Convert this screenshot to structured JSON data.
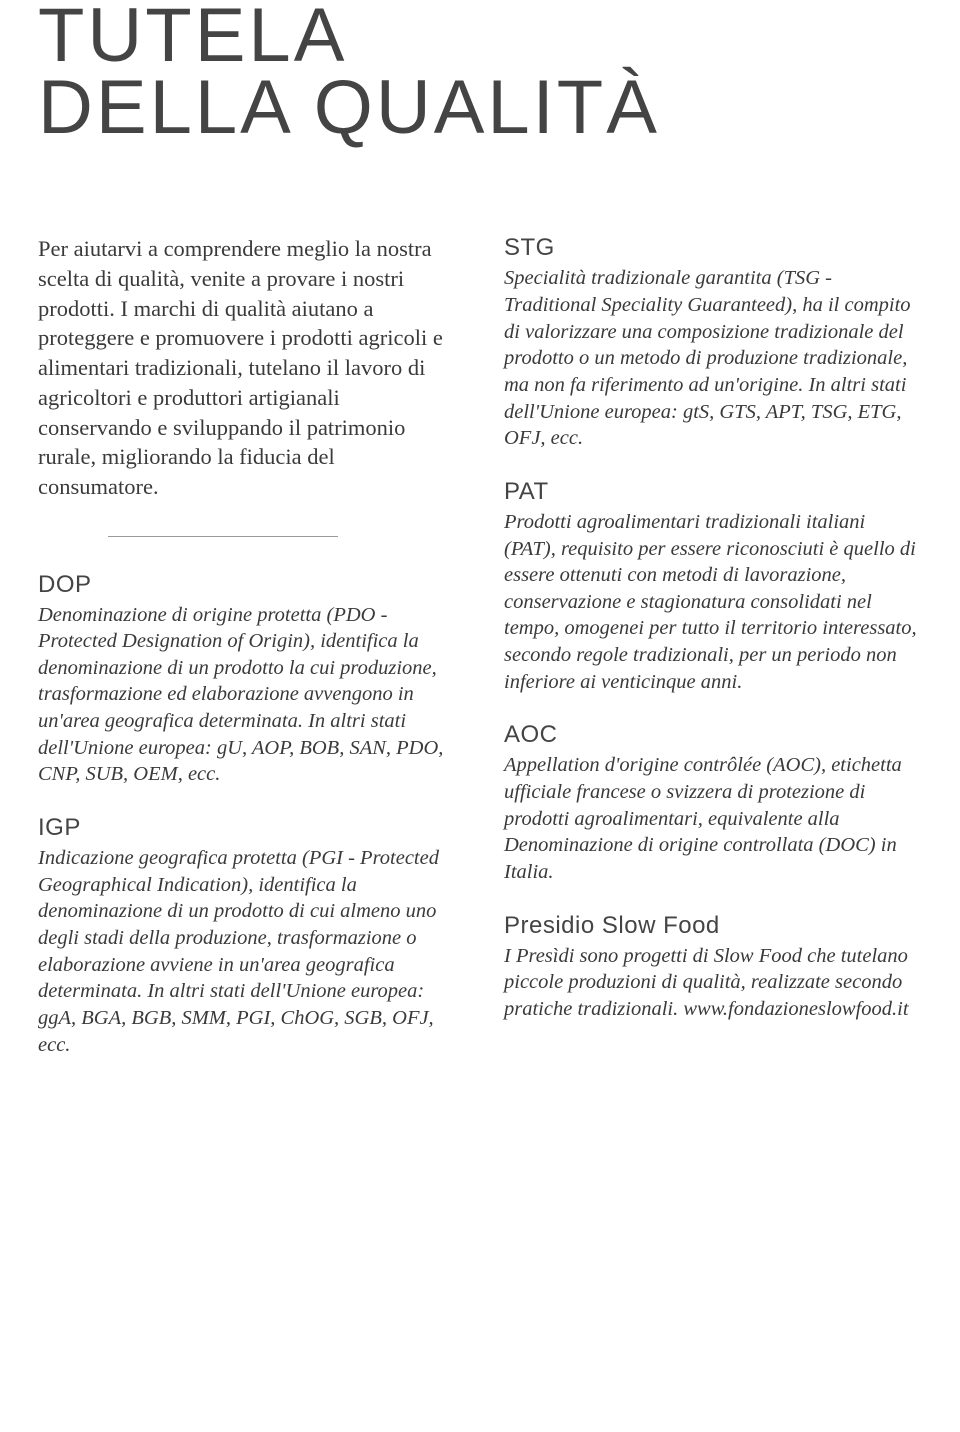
{
  "title_line1": "TUTELA",
  "title_line2": "DELLA QUALITÀ",
  "intro": "Per aiutarvi a comprendere meglio la nostra scelta di qualità, venite a provare i nostri prodotti. I marchi di qualità aiutano a proteggere e promuovere i prodotti agricoli e alimentari tradizionali, tutelano il lavoro di agricoltori e produttori artigianali conservando e sviluppando il patrimonio rurale, migliorando la fiducia del consumatore.",
  "left": [
    {
      "title": "DOP",
      "body": "Denominazione di origine protetta (PDO - Protected Designation of Origin), identifica la denominazione di un prodotto la cui produzione, trasformazione ed elaborazione avvengono in un'area geografica determinata. In altri stati dell'Unione europea: gU, AOP, BOB, SAN, PDO, CNP, SUB, OEM, ecc."
    },
    {
      "title": "IGP",
      "body": "Indicazione geografica protetta (PGI - Protected Geographical Indication), identifica la denominazione di un prodotto di cui almeno uno degli stadi della produzione, trasformazione o elaborazione avviene in un'area geografica determinata. In altri stati dell'Unione europea: ggA, BGA, BGB, SMM, PGI, ChOG, SGB, OFJ, ecc."
    }
  ],
  "right": [
    {
      "title": "STG",
      "body": "Specialità tradizionale garantita (TSG - Traditional Speciality Guaranteed), ha il compito di valorizzare una composizione tradizionale del prodotto o un metodo di produzione tradizionale, ma non fa riferimento ad un'origine. In altri stati dell'Unione europea: gtS, GTS, APT, TSG, ETG, OFJ, ecc."
    },
    {
      "title": "PAT",
      "body": "Prodotti agroalimentari tradizionali italiani (PAT), requisito per essere riconosciuti è quello di essere ottenuti con metodi di lavorazione, conservazione e stagionatura consolidati nel tempo, omogenei per tutto il territorio interessato, secondo regole tradizionali, per un periodo non inferiore ai venticinque anni."
    },
    {
      "title": "AOC",
      "body": "Appellation d'origine contrôlée (AOC), etichetta ufficiale francese o svizzera di protezione di prodotti agroalimentari, equivalente alla Denominazione di origine controllata (DOC) in Italia."
    },
    {
      "title": "Presidio Slow Food",
      "body": "I Presìdi sono progetti di Slow Food che tutelano piccole produzioni di qualità, realizzate secondo pratiche tradizionali. www.fondazioneslowfood.it"
    }
  ]
}
